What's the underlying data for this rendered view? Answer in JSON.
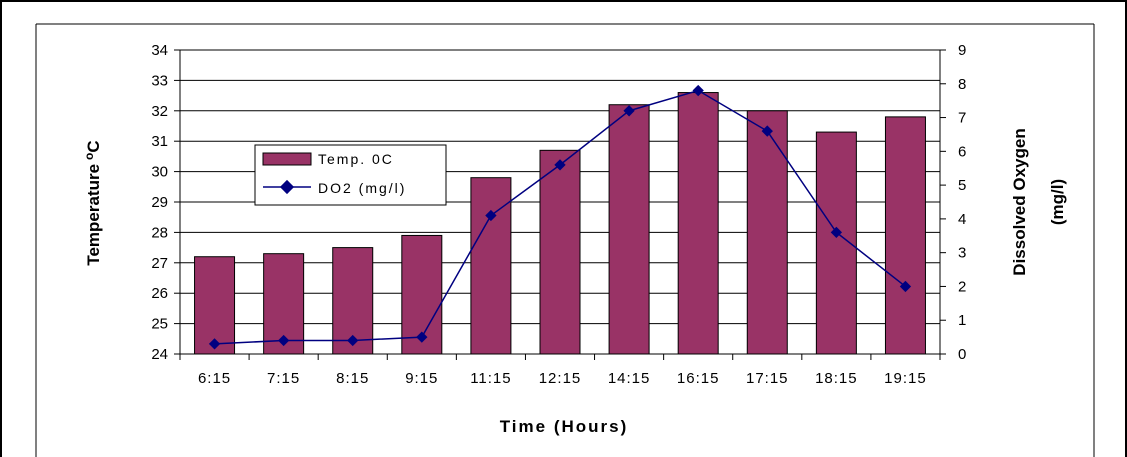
{
  "chart_data": {
    "type": "bar",
    "categories": [
      "6:15",
      "7:15",
      "8:15",
      "9:15",
      "11:15",
      "12:15",
      "14:15",
      "16:15",
      "17:15",
      "18:15",
      "19:15"
    ],
    "series": [
      {
        "name": "Temp. 0C",
        "type": "bar",
        "axis": "left",
        "values": [
          27.2,
          27.3,
          27.5,
          27.9,
          29.8,
          30.7,
          32.2,
          32.6,
          32.0,
          31.3,
          31.8
        ]
      },
      {
        "name": "DO2 (mg/l)",
        "type": "line",
        "axis": "right",
        "values": [
          0.3,
          0.4,
          0.4,
          0.5,
          4.1,
          5.6,
          7.2,
          7.8,
          6.6,
          3.6,
          2.0
        ]
      }
    ],
    "xlabel": "Time (Hours)",
    "ylabel_left": "Temperature",
    "ylabel_left_superscript": "o",
    "ylabel_left_unit": "C",
    "ylabel_right_line1": "Dissolved Oxygen",
    "ylabel_right_line2": "(mg/l)",
    "ylim_left": [
      24,
      34
    ],
    "ylim_right": [
      0,
      9
    ],
    "yticks_left": [
      "24",
      "25",
      "26",
      "27",
      "28",
      "29",
      "30",
      "31",
      "32",
      "33",
      "34"
    ],
    "yticks_right": [
      "0",
      "1",
      "2",
      "3",
      "4",
      "5",
      "6",
      "7",
      "8",
      "9"
    ],
    "legend_placement": "middle-left",
    "grid": "horizontal",
    "colors": {
      "bar_fill": "#993366",
      "line": "#000080",
      "grid": "#000000",
      "axis": "#000000"
    }
  }
}
